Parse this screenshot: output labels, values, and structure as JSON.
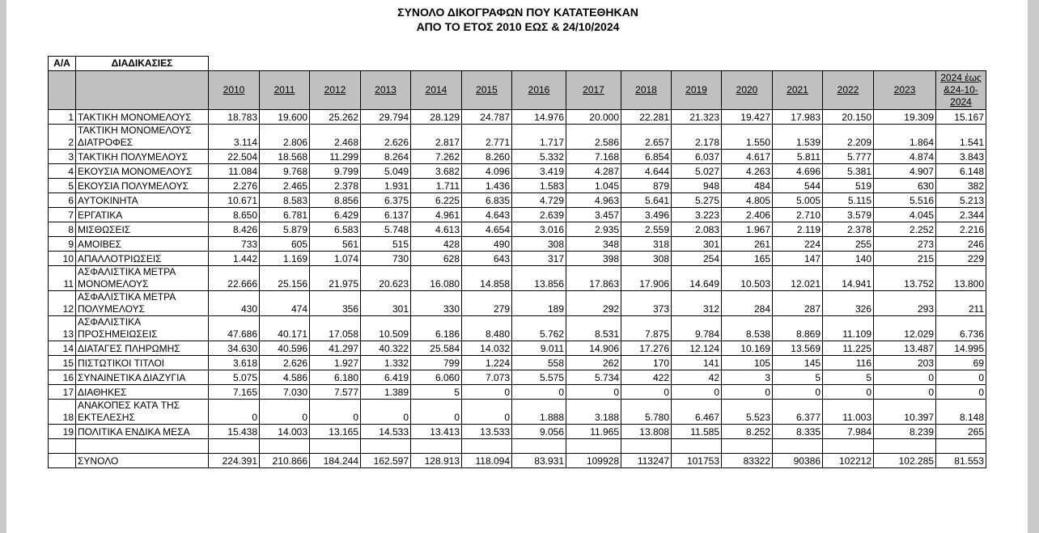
{
  "header": {
    "title": "ΣΥΝΟΛΟ ΔΙΚΟΓΡΑΦΩΝ ΠΟΥ ΚΑΤΑΤΕΘΗΚΑΝ",
    "subtitle": "ΑΠΟ ΤΟ ΕΤΟΣ 2010 ΕΩΣ & 24/10/2024"
  },
  "table": {
    "index_header": "Α/Α",
    "label_header": "ΔΙΑΔΙΚΑΣΙΕΣ",
    "years": [
      "2010",
      "2011",
      "2012",
      "2013",
      "2014",
      "2015",
      "2016",
      "2017",
      "2018",
      "2019",
      "2020",
      "2021",
      "2022",
      "2023",
      "2024 έως &24-10-2024"
    ],
    "rows": [
      {
        "index": "1",
        "label": "ΤΑΚΤΙΚΗ ΜΟΝΟΜΕΛΟΥΣ",
        "values": [
          "18.783",
          "19.600",
          "25.262",
          "29.794",
          "28.129",
          "24.787",
          "14.976",
          "20.000",
          "22.281",
          "21.323",
          "19.427",
          "17.983",
          "20.150",
          "19.309",
          "15.167"
        ]
      },
      {
        "index": "2",
        "label": "ΤΑΚΤΙΚΗ ΜΟΝΟΜΕΛΟΥΣ\nΔΙΑΤΡΟΦΕΣ",
        "values": [
          "3.114",
          "2.806",
          "2.468",
          "2.626",
          "2.817",
          "2.771",
          "1.717",
          "2.586",
          "2.657",
          "2.178",
          "1.550",
          "1.539",
          "2.209",
          "1.864",
          "1.541"
        ]
      },
      {
        "index": "3",
        "label": "ΤΑΚΤΙΚΗ ΠΟΛΥΜΕΛΟΥΣ",
        "values": [
          "22.504",
          "18.568",
          "11.299",
          "8.264",
          "7.262",
          "8.260",
          "5.332",
          "7.168",
          "6.854",
          "6.037",
          "4.617",
          "5.811",
          "5.777",
          "4.874",
          "3.843"
        ]
      },
      {
        "index": "4",
        "label": "ΕΚΟΥΣΙΑ ΜΟΝΟΜΕΛΟΥΣ",
        "values": [
          "11.084",
          "9.768",
          "9.799",
          "5.049",
          "3.682",
          "4.096",
          "3.419",
          "4.287",
          "4.644",
          "5.027",
          "4.263",
          "4.696",
          "5.381",
          "4.907",
          "6.148"
        ]
      },
      {
        "index": "5",
        "label": "ΕΚΟΥΣΙΑ ΠΟΛΥΜΕΛΟΥΣ",
        "values": [
          "2.276",
          "2.465",
          "2.378",
          "1.931",
          "1.711",
          "1.436",
          "1.583",
          "1.045",
          "879",
          "948",
          "484",
          "544",
          "519",
          "630",
          "382"
        ]
      },
      {
        "index": "6",
        "label": "ΑΥΤΟΚΙΝΗΤΑ",
        "values": [
          "10.671",
          "8.583",
          "8.856",
          "6.375",
          "6.225",
          "6.835",
          "4.729",
          "4.963",
          "5.641",
          "5.275",
          "4.805",
          "5.005",
          "5.115",
          "5.516",
          "5.213"
        ]
      },
      {
        "index": "7",
        "label": "ΕΡΓΑΤΙΚΑ",
        "values": [
          "8.650",
          "6.781",
          "6.429",
          "6.137",
          "4.961",
          "4.643",
          "2.639",
          "3.457",
          "3.496",
          "3.223",
          "2.406",
          "2.710",
          "3.579",
          "4.045",
          "2.344"
        ]
      },
      {
        "index": "8",
        "label": "ΜΙΣΘΩΣΕΙΣ",
        "values": [
          "8.426",
          "5.879",
          "6.583",
          "5.748",
          "4.613",
          "4.654",
          "3.016",
          "2.935",
          "2.559",
          "2.083",
          "1.967",
          "2.119",
          "2.378",
          "2.252",
          "2.216"
        ]
      },
      {
        "index": "9",
        "label": "ΑΜΟΙΒΕΣ",
        "values": [
          "733",
          "605",
          "561",
          "515",
          "428",
          "490",
          "308",
          "348",
          "318",
          "301",
          "261",
          "224",
          "255",
          "273",
          "246"
        ]
      },
      {
        "index": "10",
        "label": "ΑΠΑΛΛΟΤΡΙΩΣΕΙΣ",
        "values": [
          "1.442",
          "1.169",
          "1.074",
          "730",
          "628",
          "643",
          "317",
          "398",
          "308",
          "254",
          "165",
          "147",
          "140",
          "215",
          "229"
        ]
      },
      {
        "index": "11",
        "label": "ΑΣΦΑΛΙΣΤΙΚΑ ΜΕΤΡΑ\nΜΟΝΟΜΕΛΟΥΣ",
        "values": [
          "22.666",
          "25.156",
          "21.975",
          "20.623",
          "16.080",
          "14.858",
          "13.856",
          "17.863",
          "17.906",
          "14.649",
          "10.503",
          "12.021",
          "14.941",
          "13.752",
          "13.800"
        ]
      },
      {
        "index": "12",
        "label": "ΑΣΦΑΛΙΣΤΙΚΑ ΜΕΤΡΑ\nΠΟΛΥΜΕΛΟΥΣ",
        "values": [
          "430",
          "474",
          "356",
          "301",
          "330",
          "279",
          "189",
          "292",
          "373",
          "312",
          "284",
          "287",
          "326",
          "293",
          "211"
        ]
      },
      {
        "index": "13",
        "label": "ΑΣΦΑΛΙΣΤΙΚΑ\nΠΡΟΣΗΜΕΙΩΣΕΙΣ",
        "values": [
          "47.686",
          "40.171",
          "17.058",
          "10.509",
          "6.186",
          "8.480",
          "5.762",
          "8.531",
          "7.875",
          "9.784",
          "8.538",
          "8.869",
          "11.109",
          "12.029",
          "6.736"
        ]
      },
      {
        "index": "14",
        "label": "ΔΙΑΤΑΓΕΣ ΠΛΗΡΩΜΗΣ",
        "values": [
          "34.630",
          "40.596",
          "41.297",
          "40.322",
          "25.584",
          "14.032",
          "9.011",
          "14.906",
          "17.276",
          "12.124",
          "10.169",
          "13.569",
          "11.225",
          "13.487",
          "14.995"
        ]
      },
      {
        "index": "15",
        "label": "ΠΙΣΤΩΤΙΚΟΙ ΤΙΤΛΟΙ",
        "values": [
          "3.618",
          "2.626",
          "1.927",
          "1.332",
          "799",
          "1.224",
          "558",
          "262",
          "170",
          "141",
          "105",
          "145",
          "116",
          "203",
          "69"
        ]
      },
      {
        "index": "16",
        "label": "ΣΥΝΑΙΝΕΤΙΚΑ ΔΙΑΖΥΓΙΑ",
        "values": [
          "5.075",
          "4.586",
          "6.180",
          "6.419",
          "6.060",
          "7.073",
          "5.575",
          "5.734",
          "422",
          "42",
          "3",
          "5",
          "5",
          "0",
          "0"
        ]
      },
      {
        "index": "17",
        "label": "ΔΙΑΘΗΚΕΣ",
        "values": [
          "7.165",
          "7.030",
          "7.577",
          "1.389",
          "5",
          "0",
          "0",
          "0",
          "0",
          "0",
          "0",
          "0",
          "0",
          "0",
          "0"
        ]
      },
      {
        "index": "18",
        "label": "ΑΝΑΚΟΠΕΣ ΚΑΤΆ ΤΗΣ\nΕΚΤΕΛΕΣΗΣ",
        "values": [
          "0",
          "0",
          "0",
          "0",
          "0",
          "0",
          "1.888",
          "3.188",
          "5.780",
          "6.467",
          "5.523",
          "6.377",
          "11.003",
          "10.397",
          "8.148"
        ]
      },
      {
        "index": "19",
        "label": "ΠΟΛΙΤΙΚΑ ΕΝΔΙΚΑ ΜΕΣΑ",
        "values": [
          "15.438",
          "14.003",
          "13.165",
          "14.533",
          "13.413",
          "13.533",
          "9.056",
          "11.965",
          "13.808",
          "11.585",
          "8.252",
          "8.335",
          "7.984",
          "8.239",
          "265"
        ]
      }
    ],
    "total": {
      "label": "ΣΥΝΟΛΟ",
      "values": [
        "224.391",
        "210.866",
        "184.244",
        "162.597",
        "128.913",
        "118.094",
        "83.931",
        "109928",
        "113247",
        "101753",
        "83322",
        "90386",
        "102212",
        "102.285",
        "81.553"
      ]
    }
  }
}
